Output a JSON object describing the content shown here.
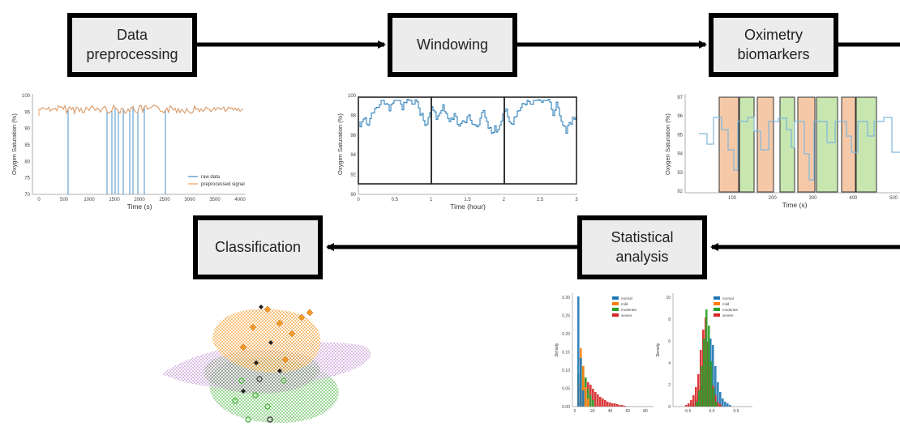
{
  "boxes": {
    "preprocessing": "Data\npreprocessing",
    "windowing": "Windowing",
    "oximetry": "Oximetry\nbiomarkers",
    "classification": "Classification",
    "statistical": "Statistical\nanalysis"
  },
  "plot1": {
    "ylabel": "Oxygen Saturation (%)",
    "xlabel": "Time (s)",
    "yticks": [
      "70",
      "75",
      "80",
      "85",
      "90",
      "95",
      "100"
    ],
    "xticks": [
      "0",
      "500",
      "1000",
      "1500",
      "2000",
      "2500",
      "3000",
      "3500",
      "4000"
    ],
    "legend_raw": "raw data",
    "legend_pre": "preprocessed signal",
    "colors": {
      "raw": "#4a90c8",
      "pre": "#f0a060"
    }
  },
  "plot2": {
    "ylabel": "Oxygen Saturation (%)",
    "xlabel": "Time (hour)",
    "yticks": [
      "90",
      "92",
      "94",
      "96",
      "98",
      "100"
    ],
    "xticks": [
      "0",
      "0.5",
      "1",
      "1.5",
      "2",
      "2.5",
      "3"
    ]
  },
  "plot3": {
    "ylabel": "Oxygen Saturation (%)",
    "xlabel": "Time (s)",
    "yticks": [
      "92",
      "93",
      "94",
      "95",
      "96",
      "97"
    ],
    "xticks": [
      "100",
      "200",
      "300",
      "400",
      "500"
    ]
  },
  "hist": {
    "legend": [
      "normal",
      "mild",
      "moderate",
      "severe"
    ],
    "colors": [
      "#1f77b4",
      "#ff7f0e",
      "#2ca02c",
      "#d62728"
    ],
    "ylabel": "Density",
    "left_yticks": [
      "0.00",
      "0.05",
      "0.10",
      "0.15",
      "0.20",
      "0.25",
      "0.30"
    ],
    "left_xticks": [
      "0",
      "20",
      "40",
      "60",
      "80"
    ],
    "right_yticks": [
      "0",
      "2",
      "4",
      "6",
      "8",
      "10"
    ],
    "right_xticks": [
      "-0.5",
      "0.0",
      "0.5"
    ]
  }
}
